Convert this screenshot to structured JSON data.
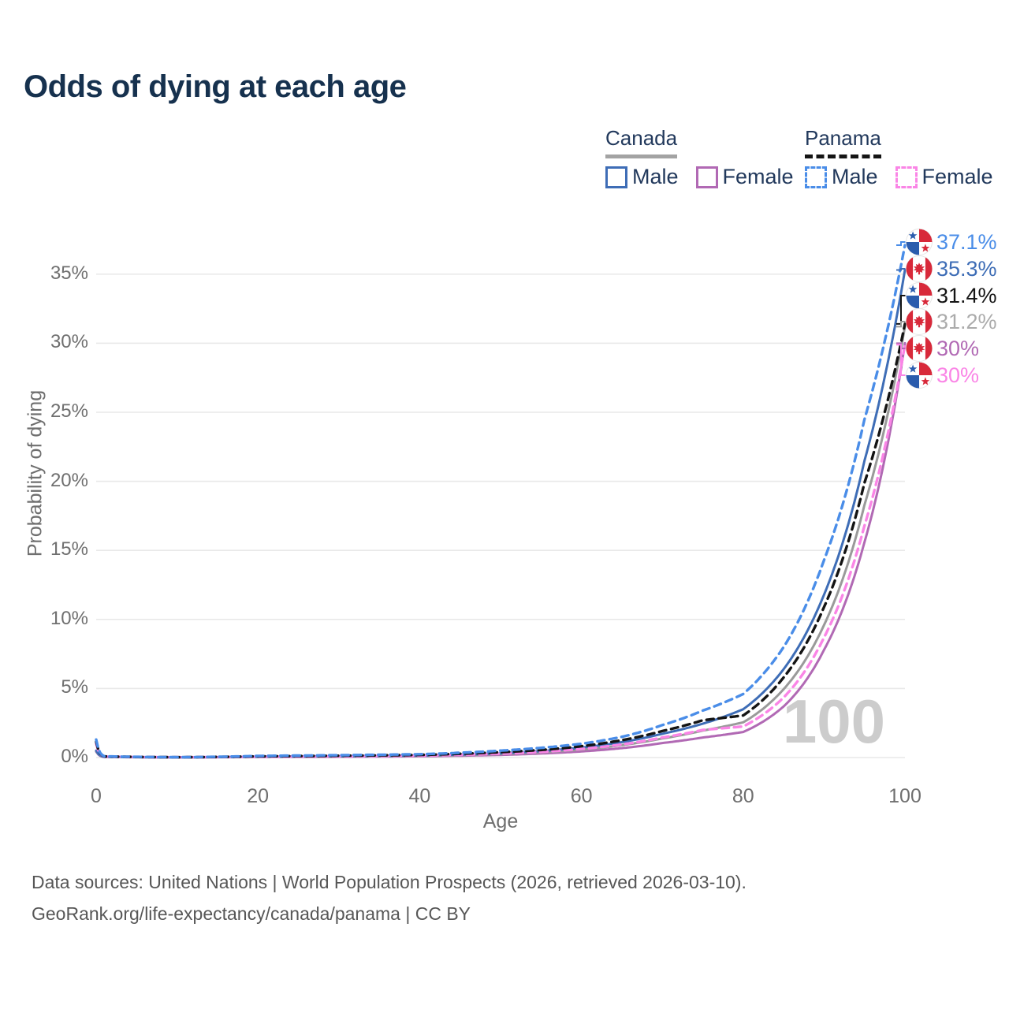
{
  "title": "Odds of dying at each age",
  "legend": {
    "groups": [
      {
        "label": "Canada",
        "line_style": "solid",
        "underline_color": "#a3a3a3",
        "items": [
          {
            "label": "Male",
            "color": "#3e6db6"
          },
          {
            "label": "Female",
            "color": "#b169b4"
          }
        ]
      },
      {
        "label": "Panama",
        "line_style": "dashed",
        "underline_color": "#141414",
        "items": [
          {
            "label": "Male",
            "color": "#4a8de8"
          },
          {
            "label": "Female",
            "color": "#fa85e6"
          }
        ]
      }
    ]
  },
  "chart_data": {
    "type": "line",
    "title": "Odds of dying at each age",
    "xlabel": "Age",
    "ylabel": "Probability of dying",
    "x_ticks": [
      0,
      20,
      40,
      60,
      80,
      100
    ],
    "y_ticks_pct": [
      0,
      5,
      10,
      15,
      20,
      25,
      30,
      35
    ],
    "xlim": [
      0,
      100
    ],
    "ylim_pct": [
      0,
      37.5
    ],
    "grid": "horizontal",
    "hover_age_watermark": "100",
    "series": [
      {
        "id": "canada-female",
        "name": "Canada Female",
        "color": "#b169b4",
        "dash": false,
        "points_age_pct": [
          [
            0,
            0.42
          ],
          [
            1,
            0.035
          ],
          [
            10,
            0.012
          ],
          [
            20,
            0.035
          ],
          [
            30,
            0.055
          ],
          [
            40,
            0.09
          ],
          [
            50,
            0.19
          ],
          [
            55,
            0.29
          ],
          [
            60,
            0.44
          ],
          [
            65,
            0.68
          ],
          [
            70,
            1.05
          ],
          [
            75,
            1.45
          ],
          [
            80,
            1.85
          ],
          [
            85,
            3.7
          ],
          [
            90,
            7.8
          ],
          [
            95,
            15.6
          ],
          [
            100,
            30.0
          ]
        ]
      },
      {
        "id": "canada-combined",
        "name": "Canada",
        "color": "#9a9a9a",
        "dash": false,
        "points_age_pct": [
          [
            0,
            0.46
          ],
          [
            1,
            0.04
          ],
          [
            10,
            0.013
          ],
          [
            20,
            0.05
          ],
          [
            30,
            0.08
          ],
          [
            40,
            0.12
          ],
          [
            50,
            0.25
          ],
          [
            55,
            0.38
          ],
          [
            60,
            0.57
          ],
          [
            65,
            0.9
          ],
          [
            70,
            1.38
          ],
          [
            75,
            1.95
          ],
          [
            80,
            2.55
          ],
          [
            85,
            4.95
          ],
          [
            90,
            9.6
          ],
          [
            95,
            18.3
          ],
          [
            100,
            31.2
          ]
        ]
      },
      {
        "id": "canada-male",
        "name": "Canada Male",
        "color": "#3e6db6",
        "dash": false,
        "points_age_pct": [
          [
            0,
            0.5
          ],
          [
            1,
            0.045
          ],
          [
            10,
            0.014
          ],
          [
            20,
            0.065
          ],
          [
            30,
            0.1
          ],
          [
            40,
            0.15
          ],
          [
            50,
            0.31
          ],
          [
            55,
            0.47
          ],
          [
            60,
            0.72
          ],
          [
            65,
            1.12
          ],
          [
            70,
            1.72
          ],
          [
            75,
            2.45
          ],
          [
            80,
            3.5
          ],
          [
            85,
            6.4
          ],
          [
            90,
            11.8
          ],
          [
            95,
            21.5
          ],
          [
            100,
            35.3
          ]
        ]
      },
      {
        "id": "panama-female",
        "name": "Panama Female",
        "color": "#fa85e6",
        "dash": true,
        "points_age_pct": [
          [
            0,
            1.0
          ],
          [
            1,
            0.07
          ],
          [
            10,
            0.02
          ],
          [
            20,
            0.06
          ],
          [
            30,
            0.09
          ],
          [
            40,
            0.14
          ],
          [
            50,
            0.28
          ],
          [
            55,
            0.41
          ],
          [
            60,
            0.62
          ],
          [
            65,
            0.95
          ],
          [
            70,
            1.45
          ],
          [
            75,
            2.0
          ],
          [
            80,
            2.25
          ],
          [
            85,
            4.35
          ],
          [
            90,
            8.7
          ],
          [
            95,
            16.8
          ],
          [
            100,
            29.9
          ]
        ]
      },
      {
        "id": "panama-combined",
        "name": "Panama",
        "color": "#141414",
        "dash": true,
        "points_age_pct": [
          [
            0,
            1.15
          ],
          [
            1,
            0.08
          ],
          [
            10,
            0.022
          ],
          [
            20,
            0.09
          ],
          [
            30,
            0.13
          ],
          [
            40,
            0.19
          ],
          [
            50,
            0.39
          ],
          [
            55,
            0.55
          ],
          [
            60,
            0.82
          ],
          [
            65,
            1.26
          ],
          [
            70,
            1.92
          ],
          [
            75,
            2.7
          ],
          [
            80,
            3.05
          ],
          [
            85,
            5.8
          ],
          [
            90,
            10.9
          ],
          [
            95,
            19.9
          ],
          [
            100,
            31.4
          ]
        ]
      },
      {
        "id": "panama-male",
        "name": "Panama Male",
        "color": "#4a8de8",
        "dash": true,
        "points_age_pct": [
          [
            0,
            1.3
          ],
          [
            1,
            0.09
          ],
          [
            10,
            0.025
          ],
          [
            20,
            0.12
          ],
          [
            30,
            0.17
          ],
          [
            40,
            0.24
          ],
          [
            50,
            0.5
          ],
          [
            55,
            0.7
          ],
          [
            60,
            1.0
          ],
          [
            65,
            1.5
          ],
          [
            70,
            2.35
          ],
          [
            75,
            3.4
          ],
          [
            80,
            4.6
          ],
          [
            85,
            8.0
          ],
          [
            90,
            14.3
          ],
          [
            95,
            24.5
          ],
          [
            100,
            37.1
          ]
        ]
      }
    ],
    "end_labels": [
      {
        "series": "panama-male",
        "text": "37.1%",
        "color": "#4a8de8",
        "flag": "panama"
      },
      {
        "series": "canada-male",
        "text": "35.3%",
        "color": "#3e6db6",
        "flag": "canada"
      },
      {
        "series": "panama-combined",
        "text": "31.4%",
        "color": "#141414",
        "flag": "panama"
      },
      {
        "series": "canada-combined",
        "text": "31.2%",
        "color": "#ababab",
        "flag": "canada"
      },
      {
        "series": "canada-female",
        "text": "30%",
        "color": "#b169b4",
        "flag": "canada"
      },
      {
        "series": "panama-female",
        "text": "30%",
        "color": "#fa85e6",
        "flag": "panama"
      }
    ]
  },
  "footer": {
    "line1": "Data sources: United Nations | World Population Prospects (2026, retrieved 2026-03-10).",
    "line2": "GeoRank.org/life-expectancy/canada/panama | CC BY"
  }
}
